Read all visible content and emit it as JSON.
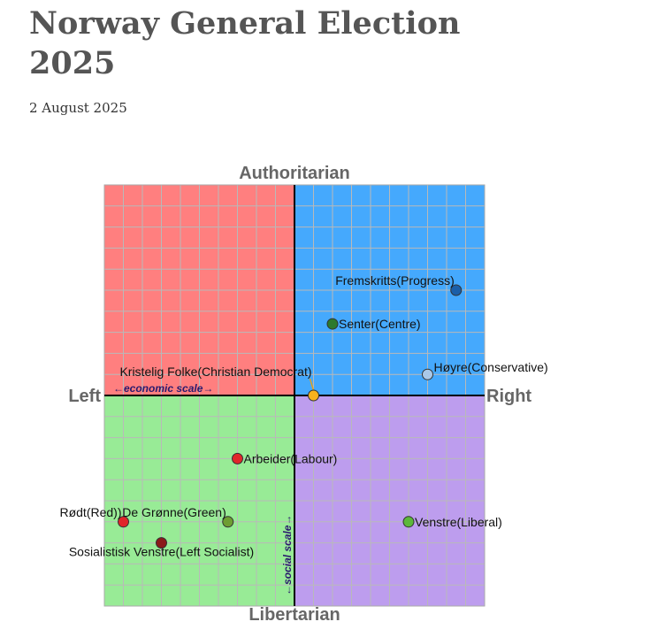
{
  "title": "Norway General Election 2025",
  "date": "2 August 2025",
  "chart_data": {
    "type": "scatter",
    "xlim": [
      -10,
      10
    ],
    "ylim": [
      -10,
      10
    ],
    "grid": true,
    "axis_labels": {
      "top": "Authoritarian",
      "bottom": "Libertarian",
      "left": "Left",
      "right": "Right",
      "x_scale": "←economic scale→",
      "y_scale": "←social scale→"
    },
    "quadrant_colors": {
      "top_left": "#ff7f7f",
      "top_right": "#45a9fd",
      "bottom_left": "#98eb96",
      "bottom_right": "#bd9dee"
    },
    "points": [
      {
        "label": "Fremskritts(Progress)",
        "x": 8.5,
        "y": 5.0,
        "color": "#1b5fa8",
        "label_pos": "above-left"
      },
      {
        "label": "Senter(Centre)",
        "x": 2.0,
        "y": 3.4,
        "color": "#2d7a2d",
        "label_pos": "right"
      },
      {
        "label": "Høyre(Conservative)",
        "x": 7.0,
        "y": 1.0,
        "color": "#a9c8e8",
        "label_pos": "right-above"
      },
      {
        "label": "Kristelig Folke(Christian Democrat)",
        "x": 1.0,
        "y": 0.0,
        "color": "#f7b21e",
        "label_pos": "above-left-leader"
      },
      {
        "label": "Arbeider(Labour)",
        "x": -3.0,
        "y": -3.0,
        "color": "#e0262a",
        "label_pos": "right"
      },
      {
        "label": "Rødt(Red))",
        "x": -9.0,
        "y": -6.0,
        "color": "#e0262a",
        "label_pos": "above-left"
      },
      {
        "label": "De Grønne(Green)",
        "x": -3.5,
        "y": -6.0,
        "color": "#6e9e32",
        "label_pos": "above-left"
      },
      {
        "label": "Sosialistisk Venstre(Left Socialist)",
        "x": -7.0,
        "y": -7.0,
        "color": "#8b1a1a",
        "label_pos": "below"
      },
      {
        "label": "Venstre(Liberal)",
        "x": 6.0,
        "y": -6.0,
        "color": "#5cb83a",
        "label_pos": "right"
      }
    ]
  }
}
